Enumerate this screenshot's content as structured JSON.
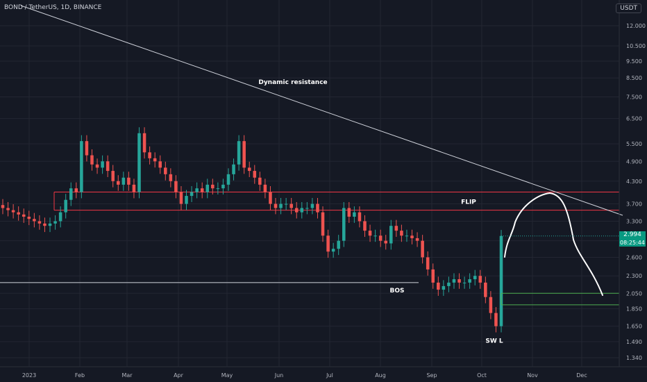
{
  "header": {
    "symbol_title": "BOND / TetherUS, 1D, BINANCE",
    "unit": "USDT"
  },
  "price_tag": {
    "price": "2.994",
    "countdown": "08:25:44"
  },
  "colors": {
    "background": "#151924",
    "grid": "#232632",
    "up": "#26a69a",
    "down": "#ef5350",
    "zone_line": "#f23645",
    "support_line": "#4caf50",
    "annotation": "#ffffff",
    "axis_text": "#b2b5be"
  },
  "chart_data": {
    "type": "candlestick",
    "y_scale": "log",
    "y_ticks": [
      "12.000",
      "10.500",
      "9.500",
      "8.500",
      "7.500",
      "6.500",
      "5.500",
      "4.900",
      "4.300",
      "3.700",
      "3.300",
      "2.900",
      "2.600",
      "2.300",
      "2.050",
      "1.850",
      "1.650",
      "1.490",
      "1.340"
    ],
    "x_ticks": [
      "2023",
      "Feb",
      "Mar",
      "Apr",
      "May",
      "Jun",
      "Jul",
      "Aug",
      "Sep",
      "Oct",
      "Nov",
      "Dec"
    ],
    "last_price": 2.994,
    "series_close": [
      3.6,
      3.55,
      3.5,
      3.45,
      3.4,
      3.35,
      3.3,
      3.25,
      3.2,
      3.25,
      3.3,
      3.5,
      3.8,
      4.1,
      4.0,
      5.6,
      5.1,
      4.8,
      4.7,
      4.9,
      4.6,
      4.3,
      4.2,
      4.4,
      4.2,
      4.0,
      5.9,
      5.2,
      5.0,
      4.9,
      4.7,
      4.5,
      4.3,
      4.0,
      3.7,
      3.9,
      4.0,
      4.1,
      4.0,
      4.2,
      4.1,
      4.1,
      4.2,
      4.5,
      4.8,
      5.6,
      4.7,
      4.6,
      4.4,
      4.2,
      4.0,
      3.7,
      3.6,
      3.7,
      3.7,
      3.6,
      3.5,
      3.6,
      3.6,
      3.7,
      3.5,
      3.0,
      2.7,
      2.75,
      2.9,
      3.6,
      3.4,
      3.5,
      3.3,
      3.1,
      3.0,
      3.0,
      2.9,
      2.85,
      3.2,
      3.1,
      3.0,
      3.0,
      2.95,
      2.9,
      2.6,
      2.4,
      2.2,
      2.1,
      2.15,
      2.2,
      2.25,
      2.2,
      2.2,
      2.25,
      2.3,
      2.2,
      2.0,
      1.8,
      1.65,
      2.994
    ],
    "annotations": [
      {
        "label": "Dynamic resistance",
        "kind": "trendline"
      },
      {
        "label": "FLIP",
        "kind": "zone",
        "top": 4.0,
        "bottom": 3.55
      },
      {
        "label": "BOS",
        "kind": "level",
        "value": 2.2
      },
      {
        "label": "SW L",
        "kind": "swing-low",
        "value": 1.65
      },
      {
        "kind": "support-levels",
        "values": [
          2.05,
          1.9
        ]
      }
    ]
  }
}
